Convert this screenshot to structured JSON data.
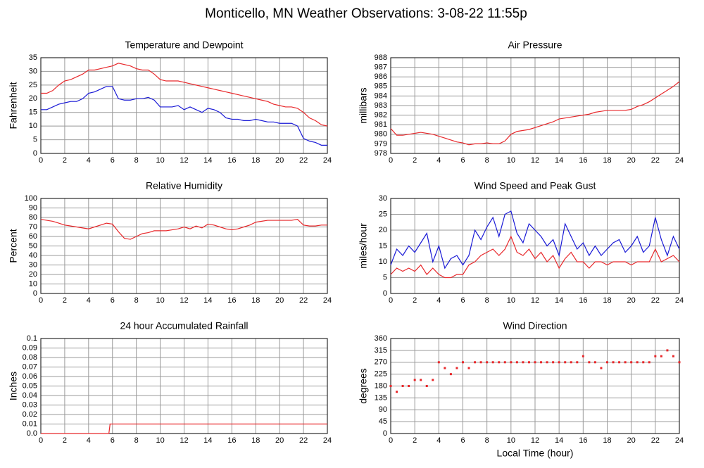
{
  "title": "Monticello, MN Weather Observations: 3-08-22 11:55p",
  "chart_data": [
    {
      "type": "line",
      "title": "Temperature and Dewpoint",
      "ylabel": "Fahrenheit",
      "x": [
        0,
        0.5,
        1,
        1.5,
        2,
        2.5,
        3,
        3.5,
        4,
        4.5,
        5,
        5.5,
        6,
        6.5,
        7,
        7.5,
        8,
        8.5,
        9,
        9.5,
        10,
        10.5,
        11,
        11.5,
        12,
        12.5,
        13,
        13.5,
        14,
        14.5,
        15,
        15.5,
        16,
        16.5,
        17,
        17.5,
        18,
        18.5,
        19,
        19.5,
        20,
        20.5,
        21,
        21.5,
        22,
        22.5,
        23,
        23.5,
        24
      ],
      "series": [
        {
          "color": "#e8282b",
          "values": [
            22,
            22,
            23,
            25,
            26.5,
            27,
            28,
            29,
            30.5,
            30.5,
            31,
            31.5,
            32,
            33,
            32.5,
            32,
            31,
            30.5,
            30.5,
            29,
            27,
            26.5,
            26.5,
            26.5,
            26,
            25.5,
            25,
            24.5,
            24,
            23.5,
            23,
            22.5,
            22,
            21.5,
            21,
            20.5,
            20,
            19.5,
            19,
            18,
            17.5,
            17,
            17,
            16.5,
            15,
            13,
            12,
            10.5,
            10
          ]
        },
        {
          "color": "#1a1ad6",
          "values": [
            16,
            16,
            17,
            18,
            18.5,
            19,
            19,
            20,
            22,
            22.5,
            23.5,
            24.5,
            24.5,
            20,
            19.5,
            19.5,
            20,
            20,
            20.5,
            19.5,
            17,
            17,
            17,
            17.5,
            16,
            17,
            16,
            15,
            16.5,
            16,
            15,
            13,
            12.5,
            12.5,
            12,
            12,
            12.5,
            12,
            11.5,
            11.5,
            11,
            11,
            11,
            10,
            5.5,
            4.5,
            4,
            3,
            3
          ]
        }
      ],
      "xlim": [
        0,
        24
      ],
      "xticks": [
        0,
        2,
        4,
        6,
        8,
        10,
        12,
        14,
        16,
        18,
        20,
        22,
        24
      ],
      "ylim": [
        0,
        35
      ],
      "yticks": [
        0,
        5,
        10,
        15,
        20,
        25,
        30,
        35
      ],
      "grid": true
    },
    {
      "type": "line",
      "title": "Air Pressure",
      "ylabel": "millibars",
      "x": [
        0,
        0.5,
        1,
        1.5,
        2,
        2.5,
        3,
        3.5,
        4,
        4.5,
        5,
        5.5,
        6,
        6.5,
        7,
        7.5,
        8,
        8.5,
        9,
        9.5,
        10,
        10.5,
        11,
        11.5,
        12,
        12.5,
        13,
        13.5,
        14,
        14.5,
        15,
        15.5,
        16,
        16.5,
        17,
        17.5,
        18,
        18.5,
        19,
        19.5,
        20,
        20.5,
        21,
        21.5,
        22,
        22.5,
        23,
        23.5,
        24
      ],
      "series": [
        {
          "color": "#e8282b",
          "values": [
            980.6,
            979.9,
            979.9,
            980.0,
            980.1,
            980.2,
            980.1,
            980.0,
            979.8,
            979.6,
            979.4,
            979.2,
            979.1,
            978.9,
            979.0,
            979.0,
            979.1,
            979.0,
            979.0,
            979.3,
            980.0,
            980.3,
            980.4,
            980.5,
            980.7,
            980.9,
            981.1,
            981.3,
            981.6,
            981.7,
            981.8,
            981.9,
            982.0,
            982.1,
            982.3,
            982.4,
            982.5,
            982.5,
            982.5,
            982.5,
            982.6,
            982.9,
            983.1,
            983.4,
            983.8,
            984.2,
            984.6,
            985.0,
            985.5
          ]
        }
      ],
      "xlim": [
        0,
        24
      ],
      "xticks": [
        0,
        2,
        4,
        6,
        8,
        10,
        12,
        14,
        16,
        18,
        20,
        22,
        24
      ],
      "ylim": [
        978,
        988
      ],
      "yticks": [
        978,
        979,
        980,
        981,
        982,
        983,
        984,
        985,
        986,
        987,
        988
      ],
      "grid": true
    },
    {
      "type": "line",
      "title": "Relative Humidity",
      "ylabel": "Percent",
      "x": [
        0,
        0.5,
        1,
        1.5,
        2,
        2.5,
        3,
        3.5,
        4,
        4.5,
        5,
        5.5,
        6,
        6.5,
        7,
        7.5,
        8,
        8.5,
        9,
        9.5,
        10,
        10.5,
        11,
        11.5,
        12,
        12.5,
        13,
        13.5,
        14,
        14.5,
        15,
        15.5,
        16,
        16.5,
        17,
        17.5,
        18,
        18.5,
        19,
        19.5,
        20,
        20.5,
        21,
        21.5,
        22,
        22.5,
        23,
        23.5,
        24
      ],
      "series": [
        {
          "color": "#e8282b",
          "values": [
            78,
            77,
            76,
            74,
            72,
            71,
            70,
            69,
            68,
            70,
            72,
            74,
            73,
            65,
            58,
            57,
            60,
            63,
            64,
            66,
            66,
            66,
            67,
            68,
            70,
            68,
            71,
            69,
            73,
            72,
            70,
            68,
            67,
            68,
            70,
            72,
            75,
            76,
            77,
            77,
            77,
            77,
            77,
            78,
            72,
            71,
            71,
            72,
            72
          ]
        }
      ],
      "xlim": [
        0,
        24
      ],
      "xticks": [
        0,
        2,
        4,
        6,
        8,
        10,
        12,
        14,
        16,
        18,
        20,
        22,
        24
      ],
      "ylim": [
        0,
        100
      ],
      "yticks": [
        0,
        10,
        20,
        30,
        40,
        50,
        60,
        70,
        80,
        90,
        100
      ],
      "grid": true
    },
    {
      "type": "line",
      "title": "Wind Speed and Peak Gust",
      "ylabel": "miles/hour",
      "x": [
        0,
        0.5,
        1,
        1.5,
        2,
        2.5,
        3,
        3.5,
        4,
        4.5,
        5,
        5.5,
        6,
        6.5,
        7,
        7.5,
        8,
        8.5,
        9,
        9.5,
        10,
        10.5,
        11,
        11.5,
        12,
        12.5,
        13,
        13.5,
        14,
        14.5,
        15,
        15.5,
        16,
        16.5,
        17,
        17.5,
        18,
        18.5,
        19,
        19.5,
        20,
        20.5,
        21,
        21.5,
        22,
        22.5,
        23,
        23.5,
        24
      ],
      "series": [
        {
          "color": "#1a1ad6",
          "values": [
            9,
            14,
            12,
            15,
            13,
            16,
            19,
            10,
            15,
            8,
            11,
            12,
            9,
            12,
            20,
            17,
            21,
            24,
            18,
            25,
            26,
            19,
            16,
            22,
            20,
            18,
            15,
            17,
            12,
            22,
            18,
            14,
            16,
            12,
            15,
            12,
            14,
            16,
            17,
            13,
            15,
            18,
            13,
            15,
            24,
            17,
            12,
            18,
            14
          ]
        },
        {
          "color": "#e8282b",
          "values": [
            6,
            8,
            7,
            8,
            7,
            9,
            6,
            8,
            6,
            5,
            5,
            6,
            6,
            9,
            10,
            12,
            13,
            14,
            12,
            14,
            18,
            13,
            12,
            14,
            11,
            13,
            10,
            12,
            8,
            11,
            13,
            10,
            10,
            8,
            10,
            10,
            9,
            10,
            10,
            10,
            9,
            10,
            10,
            10,
            14,
            10,
            11,
            12,
            10
          ]
        }
      ],
      "xlim": [
        0,
        24
      ],
      "xticks": [
        0,
        2,
        4,
        6,
        8,
        10,
        12,
        14,
        16,
        18,
        20,
        22,
        24
      ],
      "ylim": [
        0,
        30
      ],
      "yticks": [
        0,
        5,
        10,
        15,
        20,
        25,
        30
      ],
      "grid": true
    },
    {
      "type": "line",
      "title": "24 hour Accumulated Rainfall",
      "ylabel": "Inches",
      "x": [
        0,
        5.7,
        5.8,
        24
      ],
      "series": [
        {
          "color": "#e8282b",
          "values": [
            0,
            0,
            0.01,
            0.01
          ]
        }
      ],
      "xlim": [
        0,
        24
      ],
      "xticks": [
        0,
        2,
        4,
        6,
        8,
        10,
        12,
        14,
        16,
        18,
        20,
        22,
        24
      ],
      "ylim": [
        0,
        0.1
      ],
      "yticks": [
        {
          "value": 0,
          "label": "0.0"
        },
        0.01,
        0.02,
        0.03,
        0.04,
        0.05,
        0.06,
        0.07,
        0.08,
        0.09,
        0.1
      ],
      "grid": true
    },
    {
      "type": "scatter",
      "title": "Wind Direction",
      "ylabel": "degrees",
      "xlabel": "Local Time (hour)",
      "x": [
        0,
        0.5,
        1,
        1.5,
        2,
        2.5,
        3,
        3.5,
        4,
        4.5,
        5,
        5.5,
        6,
        6.5,
        7,
        7.5,
        8,
        8.5,
        9,
        9.5,
        10,
        10.5,
        11,
        11.5,
        12,
        12.5,
        13,
        13.5,
        14,
        14.5,
        15,
        15.5,
        16,
        16.5,
        17,
        17.5,
        18,
        18.5,
        19,
        19.5,
        20,
        20.5,
        21,
        21.5,
        22,
        22.5,
        23,
        23.5,
        24
      ],
      "series": [
        {
          "color": "#e8282b",
          "values": [
            180,
            158,
            180,
            180,
            203,
            203,
            180,
            203,
            270,
            248,
            225,
            248,
            270,
            248,
            270,
            270,
            270,
            270,
            270,
            270,
            270,
            270,
            270,
            270,
            270,
            270,
            270,
            270,
            270,
            270,
            270,
            270,
            293,
            270,
            270,
            248,
            270,
            270,
            270,
            270,
            270,
            270,
            270,
            270,
            293,
            293,
            315,
            293,
            270
          ]
        }
      ],
      "xlim": [
        0,
        24
      ],
      "xticks": [
        0,
        2,
        4,
        6,
        8,
        10,
        12,
        14,
        16,
        18,
        20,
        22,
        24
      ],
      "ylim": [
        0,
        360
      ],
      "yticks": [
        0,
        45,
        90,
        135,
        180,
        225,
        270,
        315,
        360
      ],
      "grid": true
    }
  ]
}
